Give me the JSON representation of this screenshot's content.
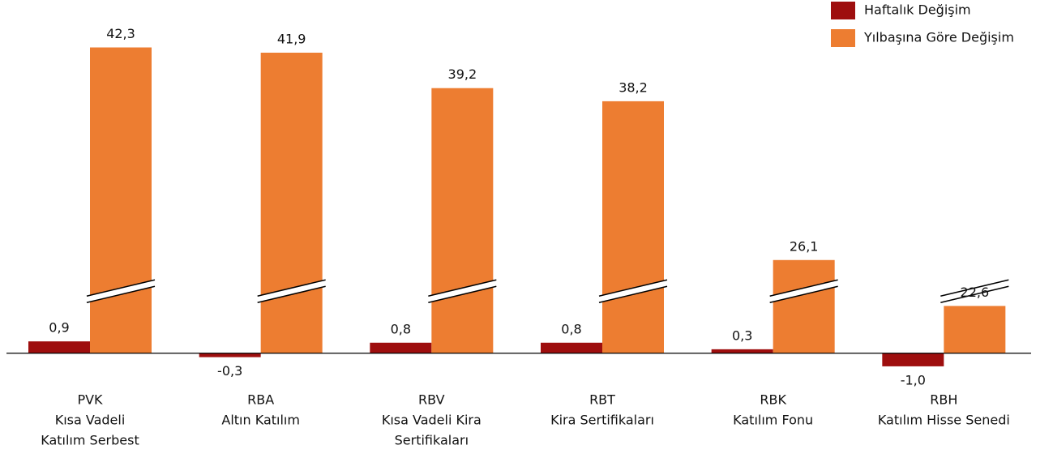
{
  "chart_data": {
    "type": "bar",
    "categories": [
      [
        "PVK",
        "Kısa Vadeli",
        "Katılım Serbest"
      ],
      [
        "RBA",
        "Altın Katılım"
      ],
      [
        "RBV",
        "Kısa Vadeli Kira",
        "Sertifikaları"
      ],
      [
        "RBT",
        "Kira Sertifikaları"
      ],
      [
        "RBK",
        "Katılım Fonu"
      ],
      [
        "RBH",
        "Katılım Hisse Senedi"
      ]
    ],
    "series": [
      {
        "name": "Haftalık Değişim",
        "color": "#9e0e0e",
        "values": [
          0.9,
          -0.3,
          0.8,
          0.8,
          0.3,
          -1.0
        ],
        "value_labels": [
          "0,9",
          "-0,3",
          "0,8",
          "0,8",
          "0,3",
          "-1,0"
        ]
      },
      {
        "name": "Yılbaşına Göre Değişim",
        "color": "#ed7d31",
        "values": [
          42.3,
          41.9,
          39.2,
          38.2,
          26.1,
          22.6
        ],
        "value_labels": [
          "42,3",
          "41,9",
          "39,2",
          "38,2",
          "26,1",
          "22,6"
        ]
      }
    ],
    "ylim": [
      -1.5,
      44
    ],
    "y_break": [
      2.5,
      21.5
    ],
    "legend": "top-right"
  }
}
